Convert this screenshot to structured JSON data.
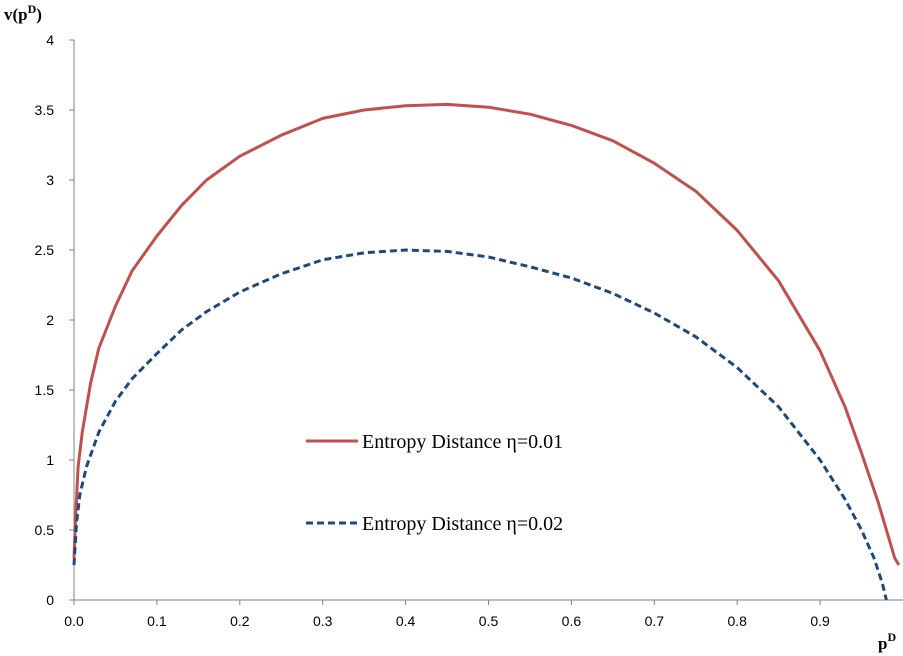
{
  "chart_data": {
    "type": "line",
    "ylabel": {
      "base": "v(p",
      "sup": "D",
      "close": ")"
    },
    "xlabel": {
      "base": "p",
      "sup": "D"
    },
    "xlim": [
      0,
      1
    ],
    "ylim": [
      0,
      4
    ],
    "xticks": [
      "0.0",
      "0.1",
      "0.2",
      "0.3",
      "0.4",
      "0.5",
      "0.6",
      "0.7",
      "0.8",
      "0.9"
    ],
    "xtick_values": [
      0,
      0.1,
      0.2,
      0.3,
      0.4,
      0.5,
      0.6,
      0.7,
      0.8,
      0.9
    ],
    "yticks": [
      "0",
      "0.5",
      "1",
      "1.5",
      "2",
      "2.5",
      "3",
      "3.5",
      "4"
    ],
    "ytick_values": [
      0,
      0.5,
      1,
      1.5,
      2,
      2.5,
      3,
      3.5,
      4
    ],
    "grid": false,
    "legend_position": "center",
    "series": [
      {
        "name": "Entropy Distance η=0.01",
        "color": "#c0504d",
        "style": "solid",
        "x": [
          0.0,
          0.002,
          0.005,
          0.01,
          0.02,
          0.03,
          0.05,
          0.07,
          0.1,
          0.13,
          0.16,
          0.2,
          0.25,
          0.3,
          0.35,
          0.4,
          0.45,
          0.5,
          0.55,
          0.6,
          0.65,
          0.7,
          0.75,
          0.8,
          0.85,
          0.9,
          0.93,
          0.95,
          0.97,
          0.98,
          0.99,
          0.995
        ],
        "y": [
          0.3,
          0.6,
          0.95,
          1.2,
          1.55,
          1.8,
          2.1,
          2.35,
          2.6,
          2.82,
          3.0,
          3.17,
          3.32,
          3.44,
          3.5,
          3.53,
          3.54,
          3.52,
          3.47,
          3.39,
          3.28,
          3.12,
          2.92,
          2.64,
          2.28,
          1.78,
          1.38,
          1.05,
          0.7,
          0.5,
          0.3,
          0.25
        ]
      },
      {
        "name": "Entropy Distance η=0.02",
        "color": "#1f497d",
        "style": "dashed",
        "x": [
          0.0,
          0.003,
          0.007,
          0.015,
          0.03,
          0.05,
          0.07,
          0.1,
          0.13,
          0.16,
          0.2,
          0.25,
          0.3,
          0.35,
          0.4,
          0.45,
          0.5,
          0.55,
          0.6,
          0.65,
          0.7,
          0.75,
          0.8,
          0.85,
          0.9,
          0.93,
          0.95,
          0.965,
          0.975,
          0.98
        ],
        "y": [
          0.25,
          0.55,
          0.75,
          0.95,
          1.2,
          1.42,
          1.58,
          1.76,
          1.93,
          2.06,
          2.2,
          2.33,
          2.43,
          2.48,
          2.5,
          2.49,
          2.45,
          2.38,
          2.3,
          2.19,
          2.05,
          1.88,
          1.66,
          1.38,
          1.0,
          0.72,
          0.5,
          0.3,
          0.12,
          0.0
        ]
      }
    ]
  }
}
